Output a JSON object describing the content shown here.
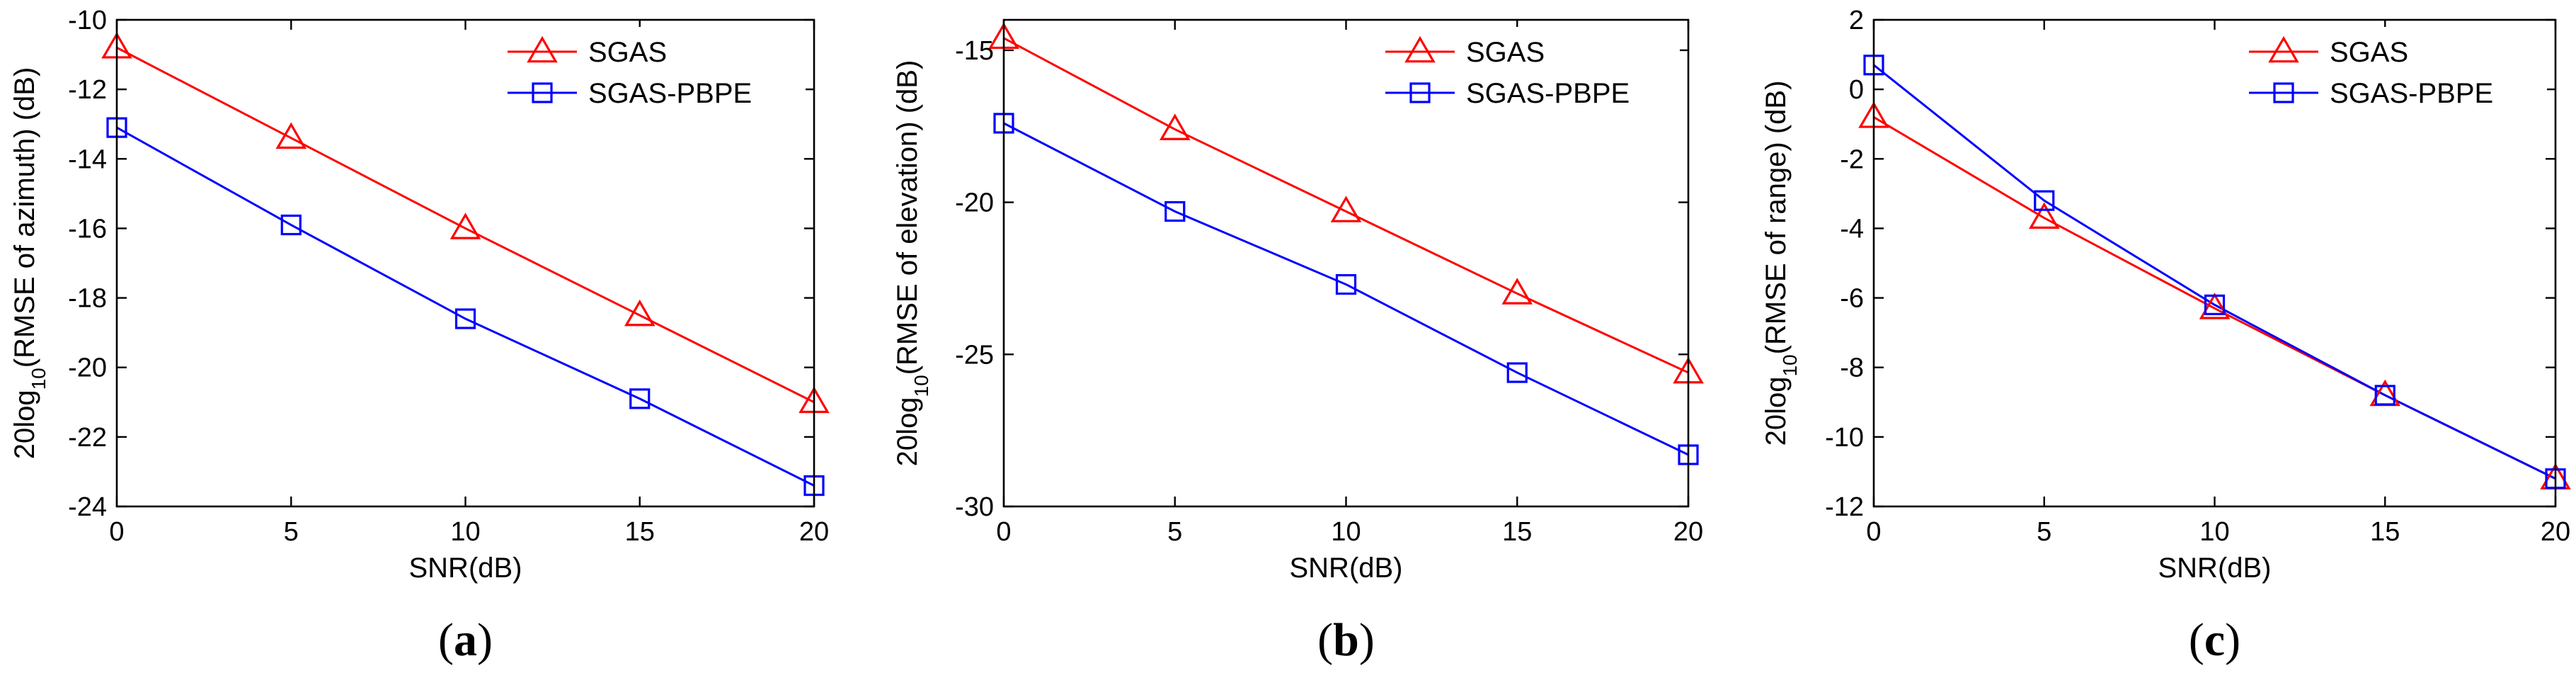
{
  "colors": {
    "sgas": "#ff0000",
    "pbpe": "#0000ff"
  },
  "chart_data": [
    {
      "id": "a",
      "type": "line",
      "panel_label": "a",
      "title": "",
      "xlabel": "SNR(dB)",
      "ylabel": {
        "prefix": "20log",
        "sub": "10",
        "suffix": "(RMSE of azimuth) (dB)"
      },
      "x": [
        0,
        5,
        10,
        15,
        20
      ],
      "xlim": [
        0,
        20
      ],
      "ylim": [
        -24,
        -10
      ],
      "xticks": [
        0,
        5,
        10,
        15,
        20
      ],
      "yticks": [
        -24,
        -22,
        -20,
        -18,
        -16,
        -14,
        -12,
        -10
      ],
      "legend_position": "top-right",
      "series": [
        {
          "name": "SGAS",
          "marker": "triangle",
          "color": "#ff0000",
          "values": [
            -10.8,
            -13.4,
            -16.0,
            -18.5,
            -21.0
          ]
        },
        {
          "name": "SGAS-PBPE",
          "marker": "square",
          "color": "#0000ff",
          "values": [
            -13.1,
            -15.9,
            -18.6,
            -20.9,
            -23.4
          ]
        }
      ]
    },
    {
      "id": "b",
      "type": "line",
      "panel_label": "b",
      "title": "",
      "xlabel": "SNR(dB)",
      "ylabel": {
        "prefix": "20log",
        "sub": "10",
        "suffix": "(RMSE of elevation) (dB)"
      },
      "x": [
        0,
        5,
        10,
        15,
        20
      ],
      "xlim": [
        0,
        20
      ],
      "ylim": [
        -30,
        -14
      ],
      "xticks": [
        0,
        5,
        10,
        15,
        20
      ],
      "yticks": [
        -30,
        -25,
        -20,
        -15
      ],
      "legend_position": "top-right",
      "series": [
        {
          "name": "SGAS",
          "marker": "triangle",
          "color": "#ff0000",
          "values": [
            -14.6,
            -17.6,
            -20.3,
            -23.0,
            -25.6
          ]
        },
        {
          "name": "SGAS-PBPE",
          "marker": "square",
          "color": "#0000ff",
          "values": [
            -17.4,
            -20.3,
            -22.7,
            -25.6,
            -28.3
          ]
        }
      ]
    },
    {
      "id": "c",
      "type": "line",
      "panel_label": "c",
      "title": "",
      "xlabel": "SNR(dB)",
      "ylabel": {
        "prefix": "20log",
        "sub": "10",
        "suffix": "(RMSE of range) (dB)"
      },
      "x": [
        0,
        5,
        10,
        15,
        20
      ],
      "xlim": [
        0,
        20
      ],
      "ylim": [
        -12,
        2
      ],
      "xticks": [
        0,
        5,
        10,
        15,
        20
      ],
      "yticks": [
        -12,
        -10,
        -8,
        -6,
        -4,
        -2,
        0,
        2
      ],
      "legend_position": "top-right",
      "series": [
        {
          "name": "SGAS",
          "marker": "triangle",
          "color": "#ff0000",
          "values": [
            -0.8,
            -3.7,
            -6.3,
            -8.8,
            -11.2
          ]
        },
        {
          "name": "SGAS-PBPE",
          "marker": "square",
          "color": "#0000ff",
          "values": [
            0.7,
            -3.2,
            -6.2,
            -8.8,
            -11.2
          ]
        }
      ]
    }
  ]
}
